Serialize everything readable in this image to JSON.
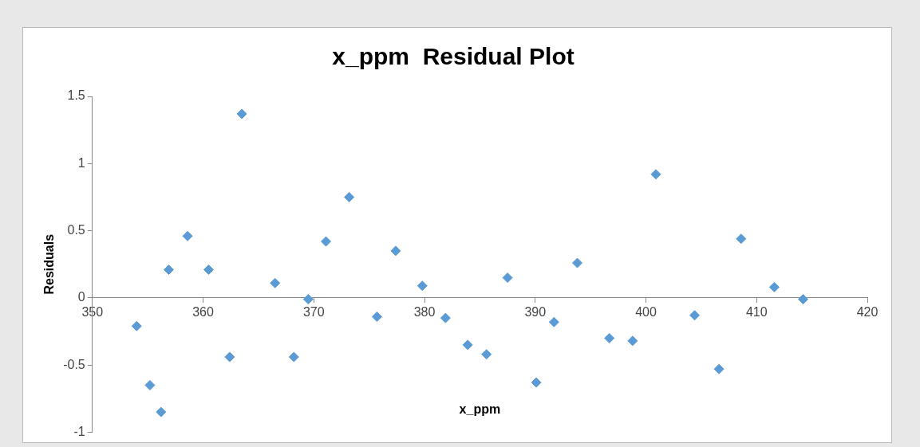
{
  "chart_data": {
    "type": "scatter",
    "title": "x_ppm  Residual Plot",
    "xlabel": "x_ppm",
    "ylabel": "Residuals",
    "x": [
      354.0,
      355.2,
      356.2,
      356.9,
      358.6,
      360.5,
      362.4,
      363.5,
      366.5,
      368.2,
      369.5,
      371.1,
      373.2,
      375.7,
      377.4,
      379.8,
      381.9,
      383.9,
      385.6,
      387.5,
      390.1,
      391.7,
      393.8,
      396.7,
      398.8,
      400.9,
      404.4,
      406.6,
      408.6,
      411.6,
      414.2
    ],
    "values": [
      -0.21,
      -0.65,
      -0.85,
      0.21,
      0.46,
      0.21,
      -0.44,
      1.37,
      0.11,
      -0.44,
      -0.01,
      0.42,
      0.75,
      -0.14,
      0.35,
      0.09,
      -0.15,
      -0.35,
      -0.42,
      0.15,
      -0.63,
      -0.18,
      0.26,
      -0.3,
      -0.32,
      0.92,
      -0.13,
      -0.53,
      0.44,
      0.08,
      -0.01
    ],
    "color": "#5b9bd5",
    "marker": "diamond",
    "legend": false,
    "grid": false,
    "xlim": [
      350,
      420
    ],
    "xticks": [
      350,
      360,
      370,
      380,
      390,
      400,
      410,
      420
    ],
    "ylim": [
      -1,
      1.5
    ],
    "yticks": [
      -1,
      -0.5,
      0,
      0.5,
      1,
      1.5
    ]
  }
}
